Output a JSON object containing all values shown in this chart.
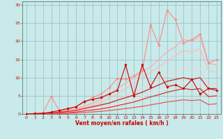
{
  "xlabel": "Vent moyen/en rafales ( km/h )",
  "xlim": [
    -0.5,
    23.5
  ],
  "ylim": [
    0,
    31
  ],
  "xticks": [
    0,
    1,
    2,
    3,
    4,
    5,
    6,
    7,
    8,
    9,
    10,
    11,
    12,
    13,
    14,
    15,
    16,
    17,
    18,
    19,
    20,
    21,
    22,
    23
  ],
  "yticks": [
    0,
    5,
    10,
    15,
    20,
    25,
    30
  ],
  "bg_color": "#c8eaea",
  "grid_color": "#9bbaba",
  "lines": [
    {
      "x": [
        0,
        1,
        2,
        3,
        4,
        5,
        6,
        7,
        8,
        9,
        10,
        11,
        12,
        13,
        14,
        15,
        16,
        17,
        18,
        19,
        20,
        21,
        22,
        23
      ],
      "y": [
        0,
        0.2,
        0.3,
        4.8,
        0.8,
        1.2,
        2.0,
        3.2,
        4.5,
        5.5,
        7.2,
        9.8,
        9.5,
        10.5,
        12.0,
        24.5,
        19.0,
        28.5,
        26.0,
        19.5,
        20.5,
        22.0,
        14.0,
        15.0
      ],
      "color": "#ff8888",
      "lw": 0.8,
      "marker": "D",
      "ms": 1.8,
      "zorder": 3
    },
    {
      "x": [
        0,
        1,
        2,
        3,
        4,
        5,
        6,
        7,
        8,
        9,
        10,
        11,
        12,
        13,
        14,
        15,
        16,
        17,
        18,
        19,
        20,
        21,
        22,
        23
      ],
      "y": [
        0,
        0.1,
        0.2,
        0.4,
        0.6,
        1.0,
        1.5,
        2.2,
        3.0,
        4.0,
        5.5,
        7.0,
        8.5,
        10.0,
        11.5,
        13.0,
        15.0,
        17.0,
        18.5,
        20.5,
        20.0,
        21.5,
        14.0,
        13.5
      ],
      "color": "#ffaaaa",
      "lw": 0.9,
      "marker": null,
      "ms": 0,
      "zorder": 2
    },
    {
      "x": [
        0,
        1,
        2,
        3,
        4,
        5,
        6,
        7,
        8,
        9,
        10,
        11,
        12,
        13,
        14,
        15,
        16,
        17,
        18,
        19,
        20,
        21,
        22,
        23
      ],
      "y": [
        0,
        0.05,
        0.15,
        0.3,
        0.5,
        0.8,
        1.2,
        1.8,
        2.5,
        3.2,
        4.3,
        5.5,
        7.0,
        8.5,
        10.0,
        11.5,
        13.0,
        14.5,
        16.0,
        17.5,
        17.0,
        18.0,
        12.0,
        11.5
      ],
      "color": "#ffbbbb",
      "lw": 0.9,
      "marker": null,
      "ms": 0,
      "zorder": 2
    },
    {
      "x": [
        0,
        1,
        2,
        3,
        4,
        5,
        6,
        7,
        8,
        9,
        10,
        11,
        12,
        13,
        14,
        15,
        16,
        17,
        18,
        19,
        20,
        21,
        22,
        23
      ],
      "y": [
        0,
        0.03,
        0.08,
        0.15,
        0.3,
        0.5,
        0.8,
        1.2,
        1.6,
        2.2,
        3.0,
        4.0,
        5.0,
        6.0,
        7.2,
        8.5,
        9.5,
        10.5,
        11.5,
        12.5,
        12.0,
        12.5,
        8.0,
        8.5
      ],
      "color": "#ffcccc",
      "lw": 0.9,
      "marker": null,
      "ms": 0,
      "zorder": 2
    },
    {
      "x": [
        0,
        1,
        2,
        3,
        4,
        5,
        6,
        7,
        8,
        9,
        10,
        11,
        12,
        13,
        14,
        15,
        16,
        17,
        18,
        19,
        20,
        21,
        22,
        23
      ],
      "y": [
        0,
        0.02,
        0.05,
        0.1,
        0.2,
        0.35,
        0.55,
        0.85,
        1.1,
        1.5,
        2.0,
        2.7,
        3.3,
        4.0,
        4.8,
        5.7,
        6.5,
        7.2,
        8.0,
        8.7,
        8.3,
        8.7,
        5.7,
        5.8
      ],
      "color": "#ffdddd",
      "lw": 0.9,
      "marker": null,
      "ms": 0,
      "zorder": 2
    },
    {
      "x": [
        0,
        1,
        2,
        3,
        4,
        5,
        6,
        7,
        8,
        9,
        10,
        11,
        12,
        13,
        14,
        15,
        16,
        17,
        18,
        19,
        20,
        21,
        22,
        23
      ],
      "y": [
        0,
        0.1,
        0.2,
        0.5,
        1.0,
        1.5,
        2.0,
        3.5,
        4.0,
        4.5,
        5.5,
        6.5,
        13.5,
        5.0,
        13.5,
        7.5,
        11.5,
        7.5,
        8.0,
        7.0,
        9.5,
        5.5,
        7.0,
        6.5
      ],
      "color": "#cc0000",
      "lw": 0.8,
      "marker": "D",
      "ms": 1.8,
      "zorder": 4
    },
    {
      "x": [
        0,
        1,
        2,
        3,
        4,
        5,
        6,
        7,
        8,
        9,
        10,
        11,
        12,
        13,
        14,
        15,
        16,
        17,
        18,
        19,
        20,
        21,
        22,
        23
      ],
      "y": [
        0,
        0.05,
        0.1,
        0.3,
        0.5,
        0.7,
        1.0,
        1.5,
        2.0,
        2.5,
        3.0,
        3.8,
        4.5,
        5.2,
        6.0,
        7.0,
        8.0,
        9.0,
        9.5,
        10.0,
        9.5,
        10.0,
        7.0,
        7.0
      ],
      "color": "#cc2222",
      "lw": 0.9,
      "marker": null,
      "ms": 0,
      "zorder": 3
    },
    {
      "x": [
        0,
        1,
        2,
        3,
        4,
        5,
        6,
        7,
        8,
        9,
        10,
        11,
        12,
        13,
        14,
        15,
        16,
        17,
        18,
        19,
        20,
        21,
        22,
        23
      ],
      "y": [
        0,
        0.02,
        0.05,
        0.12,
        0.22,
        0.35,
        0.55,
        0.85,
        1.1,
        1.4,
        1.8,
        2.3,
        2.8,
        3.3,
        4.0,
        4.7,
        5.3,
        6.0,
        6.5,
        7.0,
        6.7,
        7.0,
        4.8,
        5.0
      ],
      "color": "#dd3333",
      "lw": 0.9,
      "marker": null,
      "ms": 0,
      "zorder": 3
    },
    {
      "x": [
        0,
        1,
        2,
        3,
        4,
        5,
        6,
        7,
        8,
        9,
        10,
        11,
        12,
        13,
        14,
        15,
        16,
        17,
        18,
        19,
        20,
        21,
        22,
        23
      ],
      "y": [
        0,
        0.01,
        0.02,
        0.06,
        0.1,
        0.18,
        0.28,
        0.42,
        0.56,
        0.72,
        0.95,
        1.2,
        1.5,
        1.8,
        2.1,
        2.5,
        2.9,
        3.3,
        3.6,
        3.9,
        3.7,
        3.9,
        2.6,
        2.8
      ],
      "color": "#ee5555",
      "lw": 0.9,
      "marker": null,
      "ms": 0,
      "zorder": 3
    }
  ]
}
